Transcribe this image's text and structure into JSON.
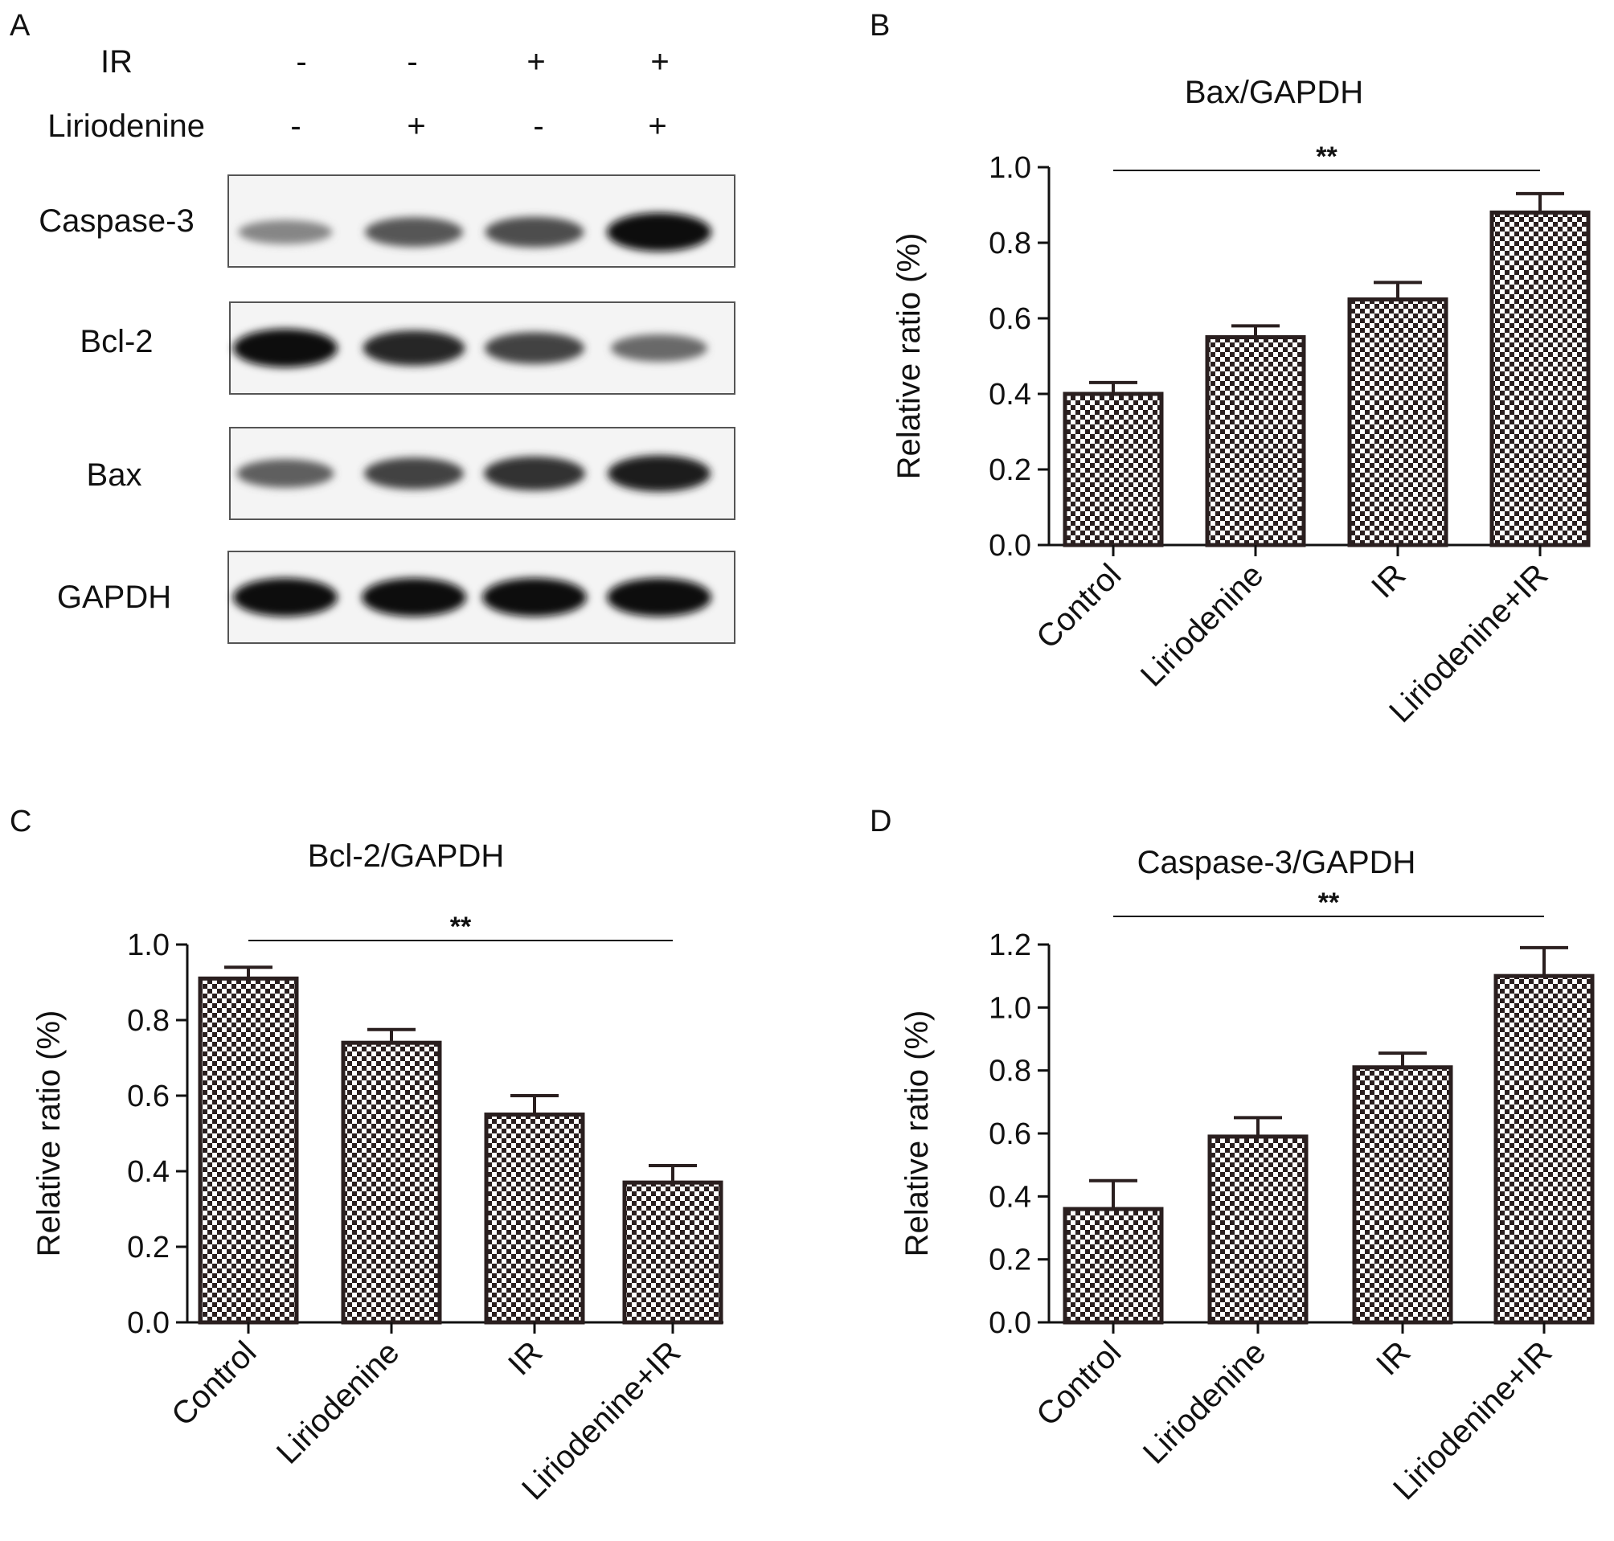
{
  "panels": {
    "a": "A",
    "b": "B",
    "c": "C",
    "d": "D"
  },
  "blot": {
    "conditions": [
      {
        "name": "IR",
        "marks": [
          "-",
          "-",
          "+",
          "+"
        ]
      },
      {
        "name": "Liriodenine",
        "marks": [
          "-",
          "+",
          "-",
          "+"
        ]
      }
    ],
    "bands": [
      {
        "name": "Caspase-3",
        "intensity": [
          0.35,
          0.6,
          0.65,
          1.0
        ]
      },
      {
        "name": "Bcl-2",
        "intensity": [
          1.0,
          0.85,
          0.7,
          0.5
        ]
      },
      {
        "name": "Bax",
        "intensity": [
          0.55,
          0.7,
          0.8,
          0.9
        ]
      },
      {
        "name": "GAPDH",
        "intensity": [
          1.0,
          1.0,
          1.0,
          1.0
        ]
      }
    ]
  },
  "colors": {
    "bar_dark": "#2a1f1f",
    "bar_light": "#ffffff",
    "axis": "#111111"
  },
  "chart_data": [
    {
      "id": "b",
      "type": "bar",
      "title": "Bax/GAPDH",
      "ylabel": "Relative ratio (%)",
      "categories": [
        "Control",
        "Liriodenine",
        "IR",
        "Liriodenine+IR"
      ],
      "values": [
        0.4,
        0.55,
        0.65,
        0.88
      ],
      "errors": [
        0.03,
        0.03,
        0.045,
        0.05
      ],
      "ylim": [
        0,
        1.0
      ],
      "yticks": [
        "0.0",
        "0.2",
        "0.4",
        "0.6",
        "0.8",
        "1.0"
      ],
      "significance": {
        "label": "**",
        "from": 0,
        "to": 3
      }
    },
    {
      "id": "c",
      "type": "bar",
      "title": "Bcl-2/GAPDH",
      "ylabel": "Relative ratio (%)",
      "categories": [
        "Control",
        "Liriodenine",
        "IR",
        "Liriodenine+IR"
      ],
      "values": [
        0.91,
        0.74,
        0.55,
        0.37
      ],
      "errors": [
        0.03,
        0.035,
        0.05,
        0.045
      ],
      "ylim": [
        0,
        1.0
      ],
      "yticks": [
        "0.0",
        "0.2",
        "0.4",
        "0.6",
        "0.8",
        "1.0"
      ],
      "significance": {
        "label": "**",
        "from": 0,
        "to": 3
      }
    },
    {
      "id": "d",
      "type": "bar",
      "title": "Caspase-3/GAPDH",
      "ylabel": "Relative ratio (%)",
      "categories": [
        "Control",
        "Liriodenine",
        "IR",
        "Liriodenine+IR"
      ],
      "values": [
        0.36,
        0.59,
        0.81,
        1.1
      ],
      "errors": [
        0.09,
        0.06,
        0.045,
        0.09
      ],
      "ylim": [
        0,
        1.2
      ],
      "yticks": [
        "0.0",
        "0.2",
        "0.4",
        "0.6",
        "0.8",
        "1.0",
        "1.2"
      ],
      "significance": {
        "label": "**",
        "from": 0,
        "to": 3
      }
    }
  ]
}
